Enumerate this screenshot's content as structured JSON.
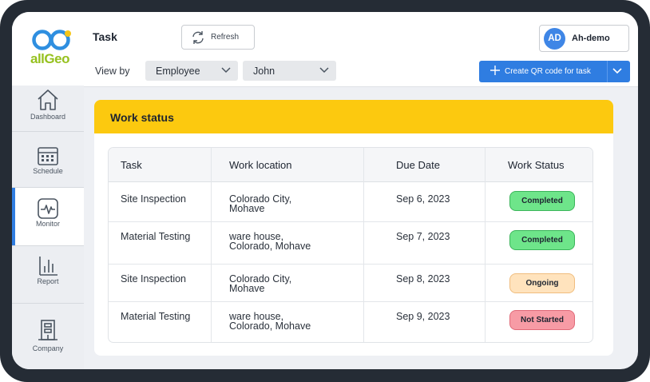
{
  "app": {
    "logo_text": "allGeo"
  },
  "sidebar": {
    "items": [
      {
        "label": "Dashboard",
        "icon": "home-icon"
      },
      {
        "label": "Schedule",
        "icon": "calendar-icon"
      },
      {
        "label": "Monitor",
        "icon": "monitor-icon",
        "active": true
      },
      {
        "label": "Report",
        "icon": "bar-chart-icon"
      },
      {
        "label": "Company",
        "icon": "building-icon"
      }
    ]
  },
  "header": {
    "title": "Task",
    "refresh_label": "Refresh",
    "view_by_label": "View by",
    "filter_type": "Employee",
    "filter_person": "John",
    "user_initials": "AD",
    "user_name": "Ah-demo",
    "create_qr_label": "Create QR code for task"
  },
  "card": {
    "title": "Work status",
    "columns": [
      "Task",
      "Work location",
      "Due Date",
      "Work Status"
    ],
    "rows": [
      {
        "task": "Site Inspection",
        "location_line1": "Colorado City,",
        "location_line2": "Mohave",
        "due": "Sep 6, 2023",
        "status": "Completed"
      },
      {
        "task": "Material Testing",
        "location_line1": "ware house,",
        "location_line2": "Colorado, Mohave",
        "due": "Sep 7, 2023",
        "status": "Completed"
      },
      {
        "task": "Site Inspection",
        "location_line1": "Colorado City,",
        "location_line2": "Mohave",
        "due": "Sep 8, 2023",
        "status": "Ongoing"
      },
      {
        "task": "Material Testing",
        "location_line1": "ware house,",
        "location_line2": "Colorado, Mohave",
        "due": "Sep 9, 2023",
        "status": "Not Started"
      }
    ]
  },
  "colors": {
    "accent": "#2f7de1",
    "header_yellow": "#fcc90f",
    "completed": "#6ee58a",
    "ongoing": "#ffe3bd",
    "not_started": "#f79ba5"
  }
}
